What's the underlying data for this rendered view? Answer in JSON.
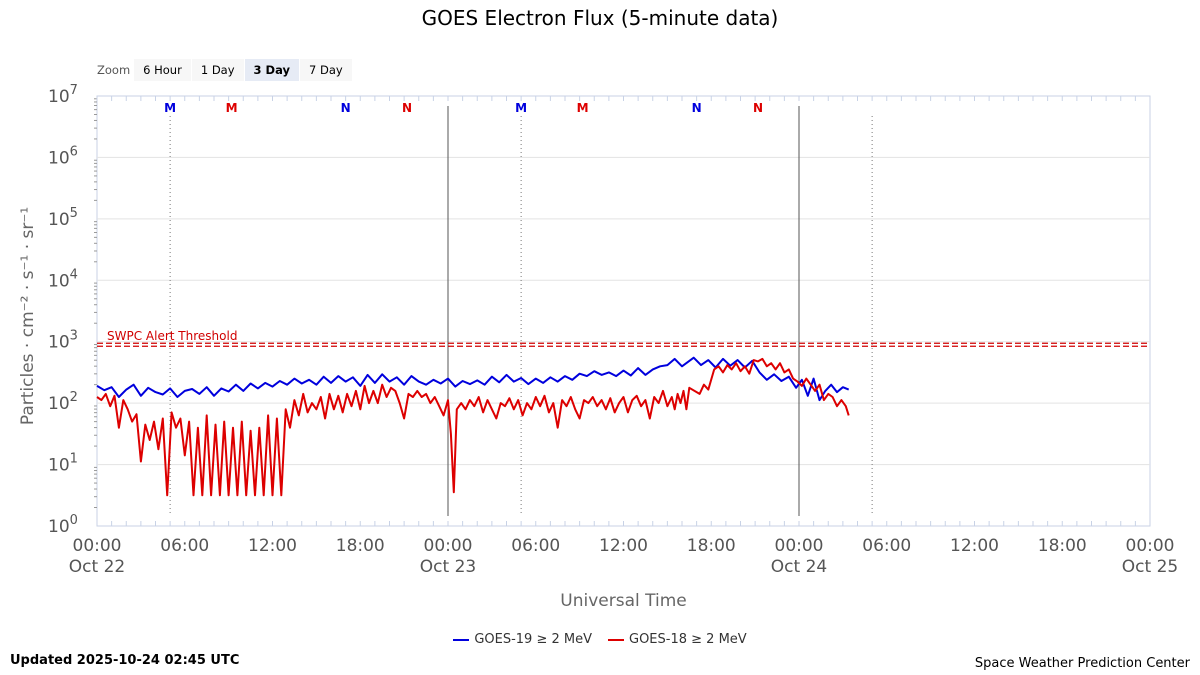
{
  "zoom": {
    "label": "Zoom",
    "buttons": [
      "6 Hour",
      "1 Day",
      "3 Day",
      "7 Day"
    ],
    "active": "3 Day"
  },
  "footer": {
    "updated": "Updated 2025-10-24 02:45 UTC",
    "credit": "Space Weather Prediction Center"
  },
  "chart_data": {
    "type": "line",
    "title": "GOES Electron Flux (5-minute data)",
    "xlabel": "Universal Time",
    "ylabel": "Particles · cm⁻² · s⁻¹ · sr⁻¹",
    "y_scale": "log",
    "y_ticks": [
      {
        "base": "10",
        "exp": "0"
      },
      {
        "base": "10",
        "exp": "1"
      },
      {
        "base": "10",
        "exp": "2"
      },
      {
        "base": "10",
        "exp": "3"
      },
      {
        "base": "10",
        "exp": "4"
      },
      {
        "base": "10",
        "exp": "5"
      },
      {
        "base": "10",
        "exp": "6"
      },
      {
        "base": "10",
        "exp": "7"
      }
    ],
    "ylim_log10": [
      0,
      7
    ],
    "xlim_hours": [
      0,
      72
    ],
    "x_ticks": [
      {
        "h": 0,
        "time": "00:00",
        "date": "Oct 22"
      },
      {
        "h": 6,
        "time": "06:00",
        "date": ""
      },
      {
        "h": 12,
        "time": "12:00",
        "date": ""
      },
      {
        "h": 18,
        "time": "18:00",
        "date": ""
      },
      {
        "h": 24,
        "time": "00:00",
        "date": "Oct 23"
      },
      {
        "h": 30,
        "time": "06:00",
        "date": ""
      },
      {
        "h": 36,
        "time": "12:00",
        "date": ""
      },
      {
        "h": 42,
        "time": "18:00",
        "date": ""
      },
      {
        "h": 48,
        "time": "00:00",
        "date": "Oct 24"
      },
      {
        "h": 54,
        "time": "06:00",
        "date": ""
      },
      {
        "h": 60,
        "time": "12:00",
        "date": ""
      },
      {
        "h": 66,
        "time": "18:00",
        "date": ""
      },
      {
        "h": 72,
        "time": "00:00",
        "date": "Oct 25"
      }
    ],
    "day_lines_hours": [
      24,
      48
    ],
    "dotted_lines_hours": [
      5,
      29,
      53
    ],
    "threshold": {
      "label": "SWPC Alert Threshold",
      "log10": 2.95,
      "color": "#d00000"
    },
    "markers": [
      {
        "h": 5,
        "text": "M",
        "color": "#0000dd"
      },
      {
        "h": 9.2,
        "text": "M",
        "color": "#dd0000"
      },
      {
        "h": 17,
        "text": "N",
        "color": "#0000dd"
      },
      {
        "h": 21.2,
        "text": "N",
        "color": "#dd0000"
      },
      {
        "h": 29,
        "text": "M",
        "color": "#0000dd"
      },
      {
        "h": 33.2,
        "text": "M",
        "color": "#dd0000"
      },
      {
        "h": 41,
        "text": "N",
        "color": "#0000dd"
      },
      {
        "h": 45.2,
        "text": "N",
        "color": "#dd0000"
      }
    ],
    "series": [
      {
        "name": "GOES-19 ≥ 2 MeV",
        "color": "#0000dd",
        "points": [
          [
            0,
            2.28
          ],
          [
            0.5,
            2.21
          ],
          [
            1,
            2.26
          ],
          [
            1.5,
            2.1
          ],
          [
            2,
            2.22
          ],
          [
            2.5,
            2.3
          ],
          [
            3,
            2.12
          ],
          [
            3.5,
            2.25
          ],
          [
            4,
            2.18
          ],
          [
            4.5,
            2.14
          ],
          [
            5,
            2.24
          ],
          [
            5.5,
            2.1
          ],
          [
            6,
            2.2
          ],
          [
            6.5,
            2.23
          ],
          [
            7,
            2.15
          ],
          [
            7.5,
            2.26
          ],
          [
            8,
            2.12
          ],
          [
            8.5,
            2.24
          ],
          [
            9,
            2.19
          ],
          [
            9.5,
            2.3
          ],
          [
            10,
            2.2
          ],
          [
            10.5,
            2.32
          ],
          [
            11,
            2.24
          ],
          [
            11.5,
            2.33
          ],
          [
            12,
            2.27
          ],
          [
            12.5,
            2.36
          ],
          [
            13,
            2.3
          ],
          [
            13.5,
            2.4
          ],
          [
            14,
            2.32
          ],
          [
            14.5,
            2.38
          ],
          [
            15,
            2.3
          ],
          [
            15.5,
            2.43
          ],
          [
            16,
            2.33
          ],
          [
            16.5,
            2.44
          ],
          [
            17,
            2.35
          ],
          [
            17.5,
            2.42
          ],
          [
            18,
            2.28
          ],
          [
            18.5,
            2.46
          ],
          [
            19,
            2.33
          ],
          [
            19.5,
            2.47
          ],
          [
            20,
            2.35
          ],
          [
            20.5,
            2.42
          ],
          [
            21,
            2.3
          ],
          [
            21.5,
            2.44
          ],
          [
            22,
            2.35
          ],
          [
            22.5,
            2.3
          ],
          [
            23,
            2.38
          ],
          [
            23.5,
            2.32
          ],
          [
            24,
            2.4
          ],
          [
            24.5,
            2.27
          ],
          [
            25,
            2.36
          ],
          [
            25.5,
            2.31
          ],
          [
            26,
            2.37
          ],
          [
            26.5,
            2.3
          ],
          [
            27,
            2.43
          ],
          [
            27.5,
            2.34
          ],
          [
            28,
            2.46
          ],
          [
            28.5,
            2.35
          ],
          [
            29,
            2.41
          ],
          [
            29.5,
            2.31
          ],
          [
            30,
            2.4
          ],
          [
            30.5,
            2.33
          ],
          [
            31,
            2.42
          ],
          [
            31.5,
            2.35
          ],
          [
            32,
            2.44
          ],
          [
            32.5,
            2.38
          ],
          [
            33,
            2.48
          ],
          [
            33.5,
            2.44
          ],
          [
            34,
            2.52
          ],
          [
            34.5,
            2.46
          ],
          [
            35,
            2.5
          ],
          [
            35.5,
            2.44
          ],
          [
            36,
            2.53
          ],
          [
            36.5,
            2.45
          ],
          [
            37,
            2.57
          ],
          [
            37.5,
            2.46
          ],
          [
            38,
            2.55
          ],
          [
            38.5,
            2.6
          ],
          [
            39,
            2.62
          ],
          [
            39.5,
            2.72
          ],
          [
            40,
            2.6
          ],
          [
            40.8,
            2.74
          ],
          [
            41.3,
            2.62
          ],
          [
            41.8,
            2.7
          ],
          [
            42.3,
            2.58
          ],
          [
            42.8,
            2.72
          ],
          [
            43.3,
            2.61
          ],
          [
            43.8,
            2.7
          ],
          [
            44.3,
            2.58
          ],
          [
            44.8,
            2.69
          ],
          [
            45.3,
            2.5
          ],
          [
            45.8,
            2.38
          ],
          [
            46.3,
            2.47
          ],
          [
            46.8,
            2.36
          ],
          [
            47.3,
            2.43
          ],
          [
            47.8,
            2.25
          ],
          [
            48.2,
            2.38
          ],
          [
            48.6,
            2.12
          ],
          [
            49,
            2.4
          ],
          [
            49.4,
            2.05
          ],
          [
            49.8,
            2.2
          ],
          [
            50.2,
            2.3
          ],
          [
            50.6,
            2.18
          ],
          [
            51,
            2.26
          ],
          [
            51.4,
            2.22
          ]
        ]
      },
      {
        "name": "GOES-18 ≥ 2 MeV",
        "color": "#dd0000",
        "points": [
          [
            0,
            2.1
          ],
          [
            0.3,
            2.05
          ],
          [
            0.6,
            2.15
          ],
          [
            0.9,
            1.95
          ],
          [
            1.2,
            2.12
          ],
          [
            1.5,
            1.6
          ],
          [
            1.8,
            2.05
          ],
          [
            2.1,
            1.9
          ],
          [
            2.4,
            1.7
          ],
          [
            2.7,
            1.82
          ],
          [
            3,
            1.05
          ],
          [
            3.3,
            1.65
          ],
          [
            3.6,
            1.4
          ],
          [
            3.9,
            1.7
          ],
          [
            4.2,
            1.25
          ],
          [
            4.5,
            1.75
          ],
          [
            4.8,
            0.5
          ],
          [
            5.1,
            1.85
          ],
          [
            5.4,
            1.6
          ],
          [
            5.7,
            1.75
          ],
          [
            6,
            1.15
          ],
          [
            6.3,
            1.7
          ],
          [
            6.6,
            0.5
          ],
          [
            6.9,
            1.6
          ],
          [
            7.2,
            0.5
          ],
          [
            7.5,
            1.8
          ],
          [
            7.8,
            0.5
          ],
          [
            8.1,
            1.65
          ],
          [
            8.4,
            0.5
          ],
          [
            8.7,
            1.7
          ],
          [
            9,
            0.5
          ],
          [
            9.3,
            1.6
          ],
          [
            9.6,
            0.5
          ],
          [
            9.9,
            1.7
          ],
          [
            10.2,
            0.5
          ],
          [
            10.5,
            1.55
          ],
          [
            10.8,
            0.5
          ],
          [
            11.1,
            1.6
          ],
          [
            11.4,
            0.5
          ],
          [
            11.7,
            1.8
          ],
          [
            12,
            0.5
          ],
          [
            12.3,
            1.75
          ],
          [
            12.6,
            0.5
          ],
          [
            12.9,
            1.9
          ],
          [
            13.2,
            1.6
          ],
          [
            13.5,
            2.05
          ],
          [
            13.8,
            1.8
          ],
          [
            14.1,
            2.15
          ],
          [
            14.4,
            1.85
          ],
          [
            14.7,
            2.0
          ],
          [
            15,
            1.9
          ],
          [
            15.3,
            2.1
          ],
          [
            15.6,
            1.75
          ],
          [
            15.9,
            2.15
          ],
          [
            16.2,
            1.9
          ],
          [
            16.5,
            2.12
          ],
          [
            16.8,
            1.85
          ],
          [
            17.1,
            2.15
          ],
          [
            17.4,
            1.95
          ],
          [
            17.7,
            2.2
          ],
          [
            18,
            1.9
          ],
          [
            18.3,
            2.28
          ],
          [
            18.6,
            2.0
          ],
          [
            18.9,
            2.2
          ],
          [
            19.2,
            2.0
          ],
          [
            19.5,
            2.3
          ],
          [
            19.8,
            2.1
          ],
          [
            20.1,
            2.25
          ],
          [
            20.4,
            2.2
          ],
          [
            20.7,
            2.0
          ],
          [
            21,
            1.75
          ],
          [
            21.3,
            2.15
          ],
          [
            21.6,
            2.1
          ],
          [
            21.9,
            2.2
          ],
          [
            22.2,
            2.1
          ],
          [
            22.5,
            2.15
          ],
          [
            22.8,
            2.0
          ],
          [
            23.1,
            2.1
          ],
          [
            23.4,
            1.95
          ],
          [
            23.7,
            1.8
          ],
          [
            24,
            2.05
          ],
          [
            24.2,
            1.5
          ],
          [
            24.4,
            0.55
          ],
          [
            24.6,
            1.9
          ],
          [
            24.9,
            2.0
          ],
          [
            25.2,
            1.9
          ],
          [
            25.5,
            2.05
          ],
          [
            25.8,
            1.95
          ],
          [
            26.1,
            2.1
          ],
          [
            26.4,
            1.85
          ],
          [
            26.7,
            2.05
          ],
          [
            27,
            1.9
          ],
          [
            27.3,
            1.75
          ],
          [
            27.6,
            2.0
          ],
          [
            27.9,
            1.95
          ],
          [
            28.2,
            2.08
          ],
          [
            28.5,
            1.9
          ],
          [
            28.8,
            2.05
          ],
          [
            29.1,
            1.8
          ],
          [
            29.4,
            2.0
          ],
          [
            29.7,
            1.9
          ],
          [
            30,
            2.1
          ],
          [
            30.3,
            1.95
          ],
          [
            30.6,
            2.12
          ],
          [
            30.9,
            1.85
          ],
          [
            31.2,
            2.0
          ],
          [
            31.5,
            1.6
          ],
          [
            31.8,
            2.05
          ],
          [
            32.1,
            1.95
          ],
          [
            32.4,
            2.1
          ],
          [
            32.7,
            1.9
          ],
          [
            33,
            1.75
          ],
          [
            33.3,
            2.05
          ],
          [
            33.6,
            2.0
          ],
          [
            33.9,
            2.1
          ],
          [
            34.2,
            1.95
          ],
          [
            34.5,
            2.05
          ],
          [
            34.8,
            1.9
          ],
          [
            35.1,
            2.08
          ],
          [
            35.4,
            1.85
          ],
          [
            35.7,
            2.0
          ],
          [
            36,
            2.1
          ],
          [
            36.3,
            1.85
          ],
          [
            36.6,
            2.05
          ],
          [
            36.9,
            2.12
          ],
          [
            37.2,
            1.95
          ],
          [
            37.5,
            2.05
          ],
          [
            37.8,
            1.75
          ],
          [
            38.1,
            2.1
          ],
          [
            38.4,
            2.0
          ],
          [
            38.7,
            2.2
          ],
          [
            39,
            1.95
          ],
          [
            39.3,
            2.1
          ],
          [
            39.5,
            1.9
          ],
          [
            39.7,
            2.15
          ],
          [
            39.9,
            2.0
          ],
          [
            40.1,
            2.2
          ],
          [
            40.3,
            1.9
          ],
          [
            40.5,
            2.25
          ],
          [
            41.2,
            2.15
          ],
          [
            41.5,
            2.3
          ],
          [
            41.8,
            2.22
          ],
          [
            42.2,
            2.55
          ],
          [
            42.5,
            2.6
          ],
          [
            42.8,
            2.5
          ],
          [
            43.1,
            2.62
          ],
          [
            43.4,
            2.55
          ],
          [
            43.7,
            2.65
          ],
          [
            44.0,
            2.52
          ],
          [
            44.3,
            2.6
          ],
          [
            44.6,
            2.48
          ],
          [
            44.9,
            2.7
          ],
          [
            45.2,
            2.68
          ],
          [
            45.5,
            2.72
          ],
          [
            45.8,
            2.6
          ],
          [
            46.1,
            2.65
          ],
          [
            46.4,
            2.55
          ],
          [
            46.7,
            2.65
          ],
          [
            47.0,
            2.5
          ],
          [
            47.3,
            2.55
          ],
          [
            47.6,
            2.4
          ],
          [
            47.9,
            2.35
          ],
          [
            48.2,
            2.28
          ],
          [
            48.5,
            2.4
          ],
          [
            48.8,
            2.3
          ],
          [
            49.1,
            2.2
          ],
          [
            49.4,
            2.3
          ],
          [
            49.7,
            2.05
          ],
          [
            50.0,
            2.15
          ],
          [
            50.3,
            2.1
          ],
          [
            50.6,
            1.95
          ],
          [
            50.9,
            2.05
          ],
          [
            51.2,
            1.95
          ],
          [
            51.4,
            1.8
          ]
        ]
      }
    ]
  }
}
